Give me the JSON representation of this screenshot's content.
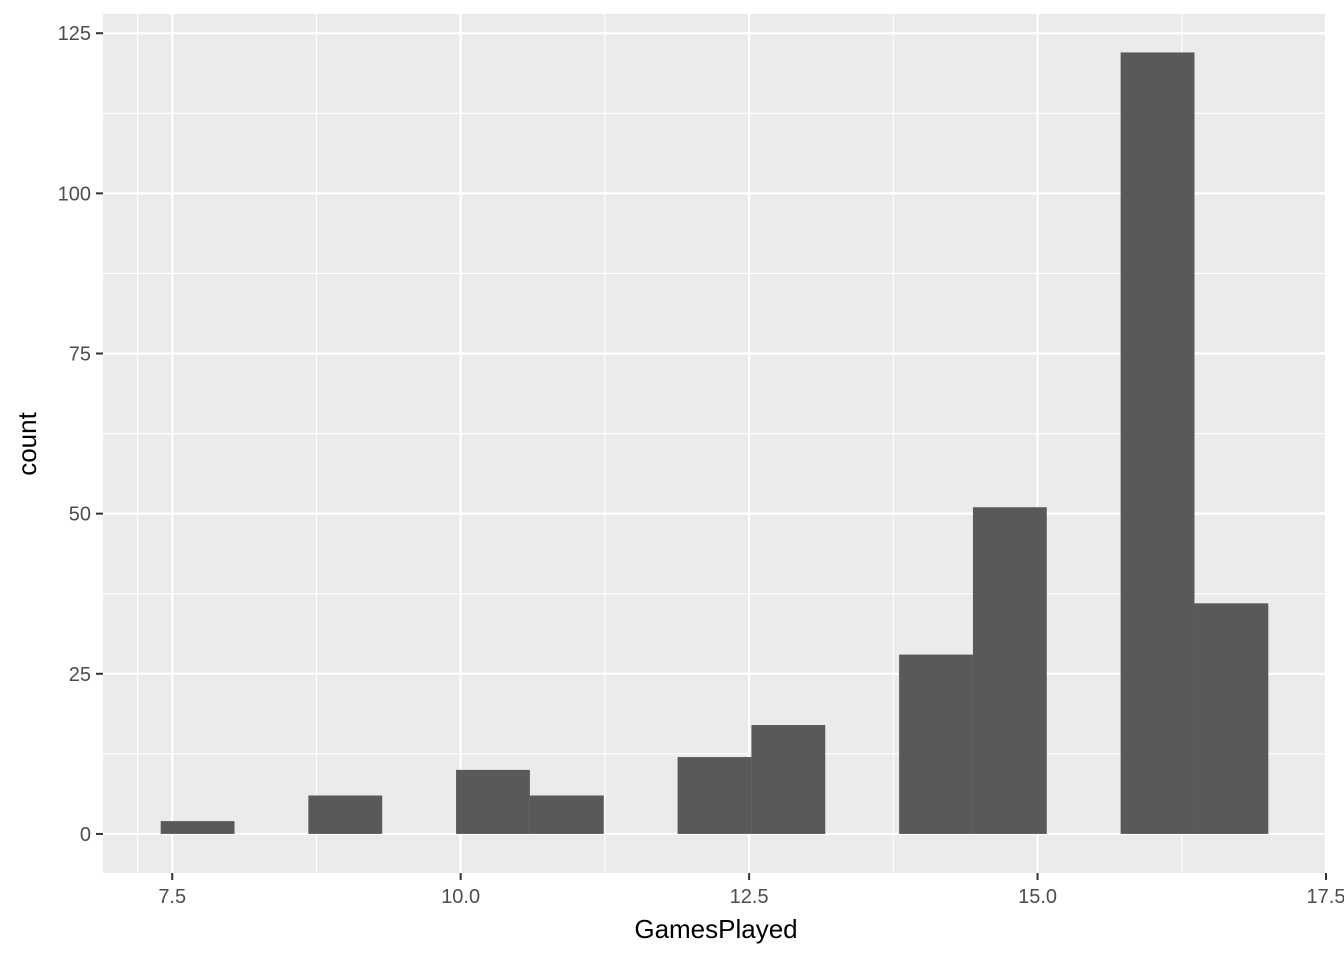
{
  "chart_data": {
    "type": "bar",
    "subtype": "histogram",
    "title": "",
    "xlabel": "GamesPlayed",
    "ylabel": "count",
    "xlim": [
      6.9,
      17.5
    ],
    "ylim": [
      -6.1,
      128
    ],
    "x_ticks": [
      "7.5",
      "10.0",
      "12.5",
      "15.0",
      "17.5"
    ],
    "y_ticks": [
      "0",
      "25",
      "50",
      "75",
      "100",
      "125"
    ],
    "bins": [
      {
        "start": 7.4,
        "end": 8.04,
        "count": 2
      },
      {
        "start": 8.04,
        "end": 8.68,
        "count": 0
      },
      {
        "start": 8.68,
        "end": 9.32,
        "count": 6
      },
      {
        "start": 9.32,
        "end": 9.96,
        "count": 0
      },
      {
        "start": 9.96,
        "end": 10.6,
        "count": 10
      },
      {
        "start": 10.6,
        "end": 11.24,
        "count": 6
      },
      {
        "start": 11.24,
        "end": 11.88,
        "count": 0
      },
      {
        "start": 11.88,
        "end": 12.52,
        "count": 12
      },
      {
        "start": 12.52,
        "end": 13.16,
        "count": 17
      },
      {
        "start": 13.16,
        "end": 13.8,
        "count": 0
      },
      {
        "start": 13.8,
        "end": 14.44,
        "count": 28
      },
      {
        "start": 14.44,
        "end": 15.08,
        "count": 51
      },
      {
        "start": 15.08,
        "end": 15.72,
        "count": 0
      },
      {
        "start": 15.72,
        "end": 16.36,
        "count": 122
      },
      {
        "start": 16.36,
        "end": 17.0,
        "count": 36
      }
    ],
    "grid": true,
    "legend": "none",
    "colors": {
      "panel": "#ebebeb",
      "grid": "#ffffff",
      "bar": "#595959",
      "tick_text": "#4d4d4d",
      "axis_title": "#000000"
    }
  }
}
